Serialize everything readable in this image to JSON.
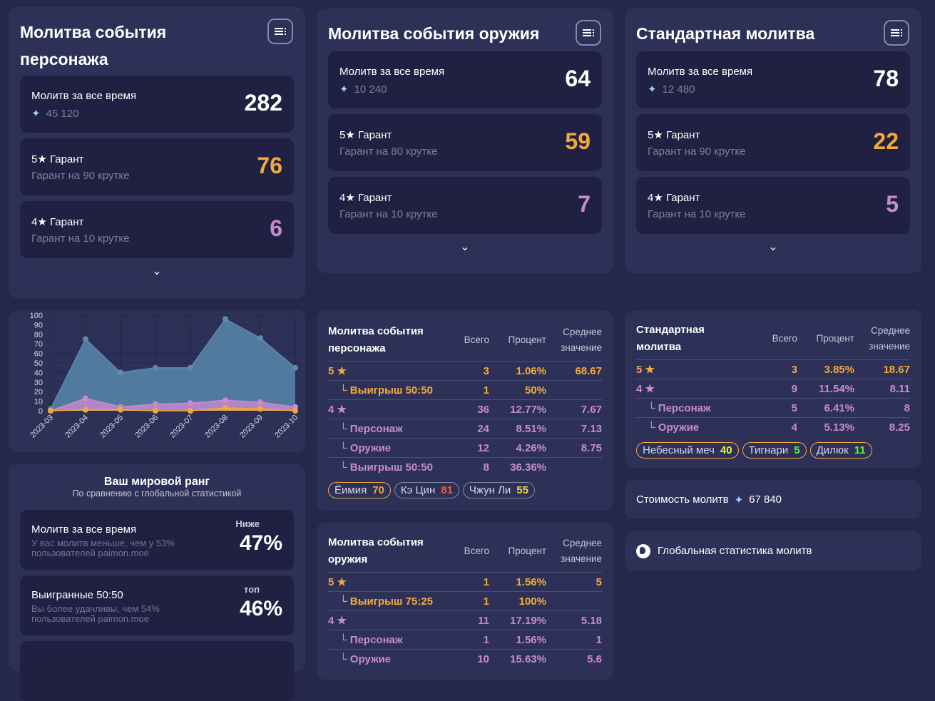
{
  "banners": [
    {
      "title": "Молитва события персонажа",
      "total_label": "Молитв за все время",
      "total_primos": "45 120",
      "total": "282",
      "five_label": "5★ Гарант",
      "five_sub": "Гарант на 90 крутке",
      "five": "76",
      "four_label": "4★ Гарант",
      "four_sub": "Гарант на 10 крутке",
      "four": "6"
    },
    {
      "title": "Молитва события оружия",
      "total_label": "Молитв за все время",
      "total_primos": "10 240",
      "total": "64",
      "five_label": "5★ Гарант",
      "five_sub": "Гарант на 80 крутке",
      "five": "59",
      "four_label": "4★ Гарант",
      "four_sub": "Гарант на 10 крутке",
      "four": "7"
    },
    {
      "title": "Стандартная молитва",
      "total_label": "Молитв за все время",
      "total_primos": "12 480",
      "total": "78",
      "five_label": "5★ Гарант",
      "five_sub": "Гарант на 90 крутке",
      "five": "22",
      "four_label": "4★ Гарант",
      "four_sub": "Гарант на 10 крутке",
      "four": "5"
    }
  ],
  "colors": {
    "five": "#f5a93a",
    "four": "#c88ad0",
    "total": "#5a8db0",
    "bg": "#25284a",
    "card": "#2d3157"
  },
  "chart_data": {
    "type": "area",
    "categories": [
      "2023-03",
      "2023-04",
      "2023-05",
      "2023-06",
      "2023-07",
      "2023-08",
      "2023-09",
      "2023-10"
    ],
    "series": [
      {
        "values": [
          2,
          75,
          40,
          45,
          45,
          96,
          76,
          45
        ],
        "color": "#5a8db0"
      },
      {
        "values": [
          0,
          13,
          4,
          7,
          8,
          11,
          9,
          4
        ],
        "color": "#c88ad0"
      },
      {
        "values": [
          0,
          1,
          1,
          0,
          0,
          3,
          2,
          0
        ],
        "color": "#f5a93a"
      }
    ],
    "ylim": [
      0,
      100
    ],
    "yticks": [
      "0",
      "10",
      "20",
      "30",
      "40",
      "50",
      "60",
      "70",
      "80",
      "90",
      "100"
    ],
    "grid": true
  },
  "rank": {
    "title": "Ваш мировой ранг",
    "subtitle": "По сравнению с глобальной статистикой",
    "items": [
      {
        "label": "Молитв за все время",
        "sub1": "У вас молитв меньше, чем у 53%",
        "sub2": "пользователей paimon.moe",
        "tag": "Ниже",
        "pct": "47%"
      },
      {
        "label": "Выигранные 50:50",
        "sub1": "Вы более удачливы, чем 54%",
        "sub2": "пользователей paimon.moe",
        "tag": "топ",
        "pct": "46%"
      }
    ]
  },
  "headers": {
    "total": "Всего",
    "percent": "Процент",
    "avg1": "Среднее",
    "avg2": "значение"
  },
  "tables": [
    {
      "title1": "Молитва события",
      "title2": "персонажа",
      "rows": [
        {
          "label": "5 ★",
          "c": "o",
          "ind": false,
          "total": "3",
          "pct": "1.06%",
          "avg": "68.67"
        },
        {
          "label": "└ Выигрыш 50:50",
          "c": "o",
          "ind": true,
          "total": "1",
          "pct": "50%",
          "avg": ""
        },
        {
          "label": "4 ★",
          "c": "p",
          "ind": false,
          "total": "36",
          "pct": "12.77%",
          "avg": "7.67"
        },
        {
          "label": "└ Персонаж",
          "c": "p",
          "ind": true,
          "total": "24",
          "pct": "8.51%",
          "avg": "7.13"
        },
        {
          "label": "└ Оружие",
          "c": "p",
          "ind": true,
          "total": "12",
          "pct": "4.26%",
          "avg": "8.75"
        },
        {
          "label": "└ Выигрыш 50:50",
          "c": "p",
          "ind": true,
          "total": "8",
          "pct": "36.36%",
          "avg": ""
        }
      ],
      "chips": [
        {
          "name": "Ёимия",
          "value": "70",
          "color": "#f5a93a",
          "gold": true
        },
        {
          "name": "Кэ Цин",
          "value": "81",
          "color": "#f0593a",
          "gold": false
        },
        {
          "name": "Чжун Ли",
          "value": "55",
          "color": "#f5d13a",
          "gold": false
        }
      ]
    },
    {
      "title1": "Молитва события",
      "title2": "оружия",
      "rows": [
        {
          "label": "5 ★",
          "c": "o",
          "ind": false,
          "total": "1",
          "pct": "1.56%",
          "avg": "5"
        },
        {
          "label": "└ Выигрыш 75:25",
          "c": "o",
          "ind": true,
          "total": "1",
          "pct": "100%",
          "avg": ""
        },
        {
          "label": "4 ★",
          "c": "p",
          "ind": false,
          "total": "11",
          "pct": "17.19%",
          "avg": "5.18"
        },
        {
          "label": "└ Персонаж",
          "c": "p",
          "ind": true,
          "total": "1",
          "pct": "1.56%",
          "avg": "1"
        },
        {
          "label": "└ Оружие",
          "c": "p",
          "ind": true,
          "total": "10",
          "pct": "15.63%",
          "avg": "5.6"
        }
      ],
      "chips": []
    },
    {
      "title1": "Стандартная молитва",
      "title2": "",
      "rows": [
        {
          "label": "5 ★",
          "c": "o",
          "ind": false,
          "total": "3",
          "pct": "3.85%",
          "avg": "18.67"
        },
        {
          "label": "4 ★",
          "c": "p",
          "ind": false,
          "total": "9",
          "pct": "11.54%",
          "avg": "8.11"
        },
        {
          "label": "└ Персонаж",
          "c": "p",
          "ind": true,
          "total": "5",
          "pct": "6.41%",
          "avg": "8"
        },
        {
          "label": "└ Оружие",
          "c": "p",
          "ind": true,
          "total": "4",
          "pct": "5.13%",
          "avg": "8.25"
        }
      ],
      "chips": [
        {
          "name": "Небесный меч",
          "value": "40",
          "color": "#e4f53a",
          "gold": true
        },
        {
          "name": "Тигнари",
          "value": "5",
          "color": "#5af53a",
          "gold": true
        },
        {
          "name": "Дилюк",
          "value": "11",
          "color": "#5af53a",
          "gold": true
        }
      ]
    }
  ],
  "cost": {
    "label": "Стоимость молитв",
    "value": "67 840"
  },
  "global": {
    "label": "Глобальная статистика молитв"
  }
}
